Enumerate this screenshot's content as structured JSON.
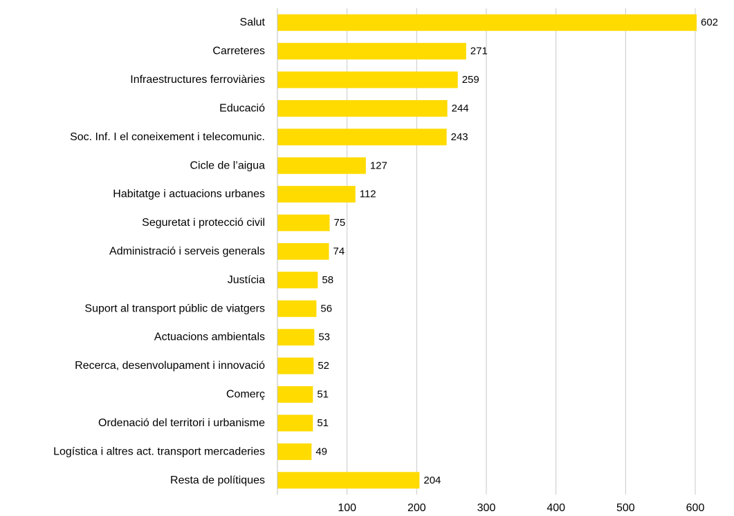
{
  "chart_data": {
    "type": "bar",
    "orientation": "horizontal",
    "categories": [
      "Salut",
      "Carreteres",
      "Infraestructures ferroviàries",
      "Educació",
      "Soc. Inf. I el coneixement i telecomunic.",
      "Cicle de l’aigua",
      "Habitatge i actuacions urbanes",
      "Seguretat i protecció civil",
      "Administració i serveis generals",
      "Justícia",
      "Suport al transport públic de viatgers",
      "Actuacions ambientals",
      "Recerca, desenvolupament i innovació",
      "Comerç",
      "Ordenació del territori i urbanisme",
      "Logística i altres act. transport mercaderies",
      "Resta de polítiques"
    ],
    "values": [
      602,
      271,
      259,
      244,
      243,
      127,
      112,
      75,
      74,
      58,
      56,
      53,
      52,
      51,
      51,
      49,
      204
    ],
    "value_labels": [
      "602",
      "271",
      "259",
      "244",
      "243",
      "127",
      "112",
      "75",
      "74",
      "58",
      "56",
      "53",
      "52",
      "51",
      "51",
      "49",
      "204"
    ],
    "xlim": [
      0,
      600
    ],
    "xticks": [
      100,
      200,
      300,
      400,
      500,
      600
    ],
    "xtick_labels": [
      "100",
      "200",
      "300",
      "400",
      "500",
      "600"
    ],
    "grid": "vertical",
    "legend": "none",
    "bar_color": "#FFDB00"
  }
}
